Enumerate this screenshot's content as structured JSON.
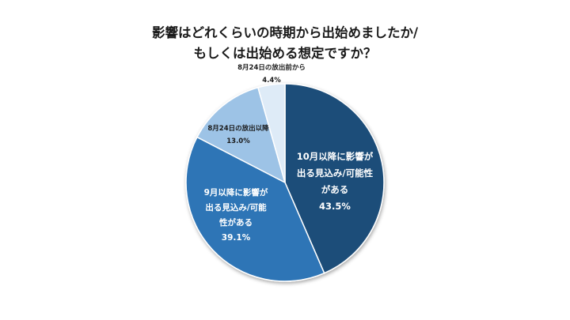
{
  "chart_data": {
    "type": "pie",
    "title_lines": [
      "影響はどれくらいの時期から出始めましたか/",
      "もしくは出始める想定ですか？"
    ],
    "slices": [
      {
        "label_lines": [
          "10月以降に影響が",
          "出る見込み/可能性",
          "がある"
        ],
        "value": 43.5,
        "value_text": "43.5%",
        "color": "#1f4e79",
        "label_color": "#ffffff"
      },
      {
        "label_lines": [
          "9月以降に影響が",
          "出る見込み/可能",
          "性がある"
        ],
        "value": 39.1,
        "value_text": "39.1%",
        "color": "#2e75b6",
        "label_color": "#ffffff"
      },
      {
        "label_lines": [
          "8月24日の放出以降"
        ],
        "value": 13.0,
        "value_text": "13.0%",
        "color": "#9dc3e6",
        "label_color": "#1a1a1a"
      },
      {
        "label_lines": [
          "8月24日の放出前から"
        ],
        "value": 4.4,
        "value_text": "4.4%",
        "color": "#deebf7",
        "label_color": "#1a1a1a"
      }
    ]
  }
}
